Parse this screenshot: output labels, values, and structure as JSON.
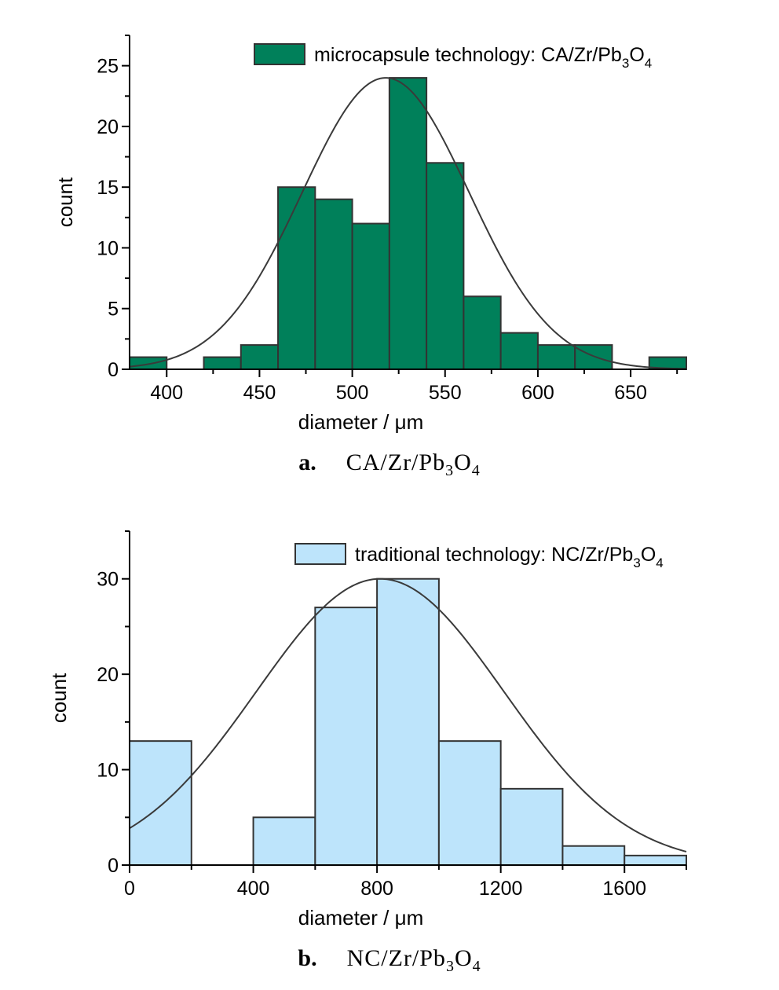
{
  "chart_data": [
    {
      "type": "bar",
      "subtype": "histogram",
      "bin_edges": [
        380,
        400,
        420,
        440,
        460,
        480,
        500,
        520,
        540,
        560,
        580,
        600,
        620,
        640,
        660,
        680
      ],
      "values": [
        1,
        0,
        1,
        2,
        15,
        14,
        12,
        24,
        17,
        6,
        3,
        2,
        2,
        0,
        1
      ],
      "fit_curve": {
        "type": "normal",
        "mean": 518,
        "sd": 45,
        "peak": 24
      },
      "xlabel": "diameter / μm",
      "ylabel": "count",
      "xlim": [
        380,
        680
      ],
      "ylim": [
        0,
        27.5
      ],
      "x_ticks": [
        "400",
        "450",
        "500",
        "550",
        "600",
        "650"
      ],
      "y_ticks": [
        "0",
        "5",
        "10",
        "15",
        "20",
        "25"
      ],
      "legend": {
        "label_main": "microcapsule technology: CA/Zr/Pb",
        "sub1": "3",
        "mid": "O",
        "sub2": "4",
        "placement": "top-right"
      },
      "bar_color": "#00805a",
      "caption": {
        "letter": "a.",
        "main": "CA/Zr/Pb",
        "sub1": "3",
        "mid": "O",
        "sub2": "4"
      }
    },
    {
      "type": "bar",
      "subtype": "histogram",
      "bin_edges": [
        0,
        200,
        400,
        600,
        800,
        1000,
        1200,
        1400,
        1600,
        1800
      ],
      "values": [
        13,
        0,
        5,
        27,
        30,
        13,
        8,
        2,
        1
      ],
      "fit_curve": {
        "type": "normal",
        "mean": 810,
        "sd": 400,
        "peak": 30
      },
      "xlabel": "diameter / μm",
      "ylabel": "count",
      "xlim": [
        0,
        1800
      ],
      "ylim": [
        0,
        35
      ],
      "x_ticks": [
        "0",
        "400",
        "800",
        "1200",
        "1600"
      ],
      "y_ticks": [
        "0",
        "10",
        "20",
        "30"
      ],
      "legend": {
        "label_main": "traditional technology: NC/Zr/Pb",
        "sub1": "3",
        "mid": "O",
        "sub2": "4",
        "placement": "top-right"
      },
      "bar_color": "#bde4fb",
      "caption": {
        "letter": "b.",
        "main": "NC/Zr/Pb",
        "sub1": "3",
        "mid": "O",
        "sub2": "4"
      }
    }
  ]
}
